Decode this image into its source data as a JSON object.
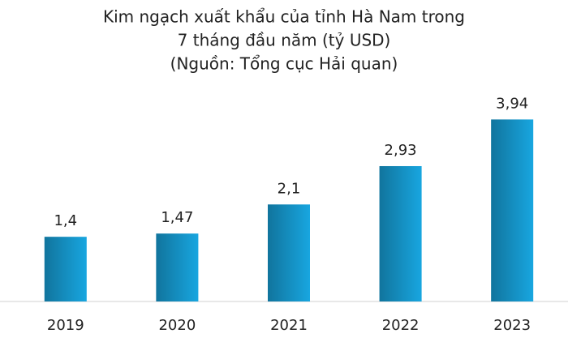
{
  "chart_data": {
    "type": "bar",
    "title": [
      "Kim ngạch xuất khẩu của tỉnh Hà Nam trong",
      "7 tháng đầu năm (tỷ USD)",
      "(Nguồn: Tổng cục Hải quan)"
    ],
    "categories": [
      "2019",
      "2020",
      "2021",
      "2022",
      "2023"
    ],
    "values": [
      1.4,
      1.47,
      2.1,
      2.93,
      3.94
    ],
    "value_labels": [
      "1,4",
      "1,47",
      "2,1",
      "2,93",
      "3,94"
    ],
    "color": "#18a6e0",
    "ylim": [
      0,
      4
    ]
  }
}
